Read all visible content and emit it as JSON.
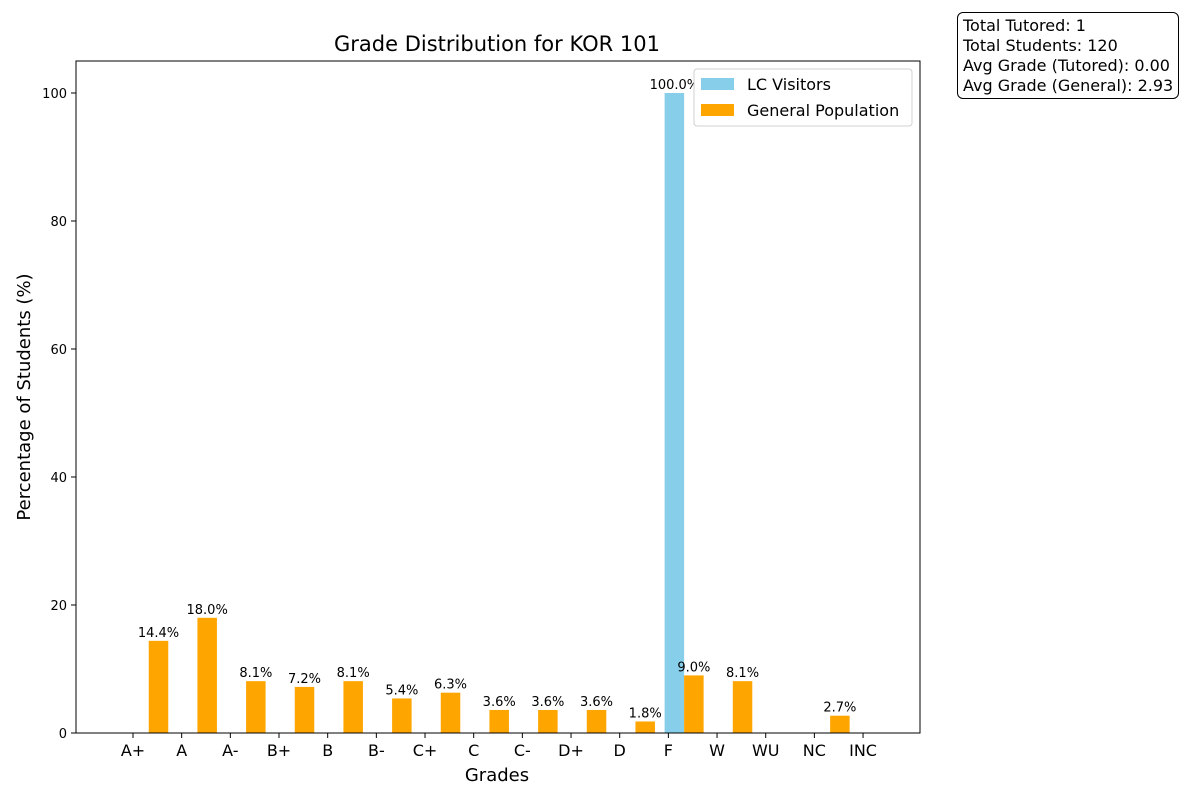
{
  "chart_data": {
    "type": "bar",
    "title": "Grade Distribution for KOR 101",
    "xlabel": "Grades",
    "ylabel": "Percentage of Students (%)",
    "categories": [
      "A+",
      "A",
      "A-",
      "B+",
      "B",
      "B-",
      "C+",
      "C",
      "C-",
      "D+",
      "D",
      "F",
      "W",
      "WU",
      "NC",
      "INC"
    ],
    "ylim": [
      0,
      105
    ],
    "yticks": [
      0,
      20,
      40,
      60,
      80,
      100
    ],
    "legend_position": "top-right",
    "grid": false,
    "series": [
      {
        "name": "LC Visitors",
        "color": "#87CEEB",
        "values": [
          0,
          0,
          0,
          0,
          0,
          0,
          0,
          0,
          0,
          0,
          0,
          100.0,
          0,
          0,
          0,
          0
        ],
        "labels": [
          "",
          "",
          "",
          "",
          "",
          "",
          "",
          "",
          "",
          "",
          "",
          "100.0%",
          "",
          "",
          "",
          ""
        ]
      },
      {
        "name": "General Population",
        "color": "#FFA500",
        "values": [
          14.4,
          18.0,
          8.1,
          7.2,
          8.1,
          5.4,
          6.3,
          3.6,
          3.6,
          3.6,
          1.8,
          9.0,
          8.1,
          0,
          2.7,
          0
        ],
        "labels": [
          "14.4%",
          "18.0%",
          "8.1%",
          "7.2%",
          "8.1%",
          "5.4%",
          "6.3%",
          "3.6%",
          "3.6%",
          "3.6%",
          "1.8%",
          "9.0%",
          "8.1%",
          "",
          "2.7%",
          ""
        ]
      }
    ]
  },
  "stats": {
    "total_tutored": "Total Tutored: 1",
    "total_students": "Total Students: 120",
    "avg_tutored": "Avg Grade (Tutored): 0.00",
    "avg_general": "Avg Grade (General): 2.93"
  }
}
